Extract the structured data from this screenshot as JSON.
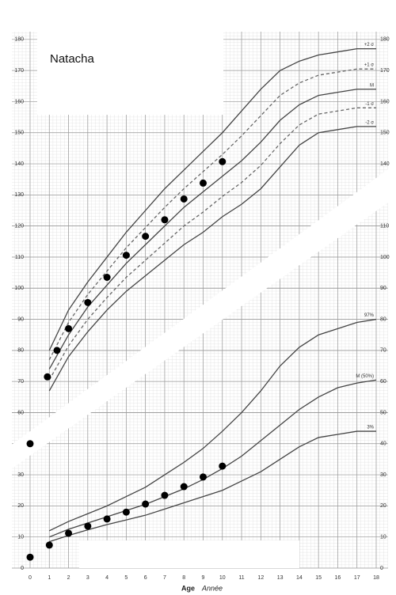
{
  "chart_data": {
    "type": "line",
    "title": "Natacha",
    "xlabel": "Age",
    "xlabel_translation": "Année",
    "xlim": [
      0,
      18
    ],
    "xticks": [
      0,
      1,
      2,
      3,
      4,
      5,
      6,
      7,
      8,
      9,
      10,
      11,
      12,
      13,
      14,
      15,
      16,
      17,
      18
    ],
    "ylim": [
      10,
      182.5
    ],
    "yticks": [
      60,
      70,
      80,
      90,
      100,
      110,
      120,
      130,
      140,
      150,
      160,
      170,
      180
    ],
    "y2lim": [
      0,
      172.5
    ],
    "y2ticks": [
      0,
      10,
      20,
      30,
      40,
      50,
      60,
      70,
      80,
      90,
      100,
      110
    ],
    "grid": true,
    "series": [
      {
        "name": "+2 σ",
        "color": "#444444",
        "dash": "solid",
        "x": [
          1,
          2,
          3,
          4,
          5,
          6,
          7,
          8,
          9,
          10,
          11,
          12,
          13,
          14,
          15,
          16,
          17,
          18
        ],
        "values": [
          80,
          93,
          102,
          110,
          118,
          125,
          132,
          138,
          144,
          150,
          157,
          164,
          170,
          173,
          175,
          176,
          177,
          177
        ]
      },
      {
        "name": "+1 σ",
        "color": "#666666",
        "dash": "dashed",
        "x": [
          1,
          2,
          3,
          4,
          5,
          6,
          7,
          8,
          9,
          10,
          11,
          12,
          13,
          14,
          15,
          16,
          17,
          18
        ],
        "values": [
          77,
          89,
          98,
          105.5,
          113,
          119.5,
          126,
          132,
          137.5,
          143,
          149,
          155.5,
          162,
          166,
          168.5,
          169.5,
          170.5,
          170.5
        ]
      },
      {
        "name": "M",
        "color": "#444444",
        "dash": "solid",
        "x": [
          1,
          2,
          3,
          4,
          5,
          6,
          7,
          8,
          9,
          10,
          11,
          12,
          13,
          14,
          15,
          16,
          17,
          18
        ],
        "values": [
          74,
          85,
          94,
          101,
          108,
          114,
          120,
          126,
          131,
          136,
          141,
          147,
          154,
          159,
          162,
          163,
          164,
          164
        ]
      },
      {
        "name": "-1 σ",
        "color": "#666666",
        "dash": "dashed",
        "x": [
          1,
          2,
          3,
          4,
          5,
          6,
          7,
          8,
          9,
          10,
          11,
          12,
          13,
          14,
          15,
          16,
          17,
          18
        ],
        "values": [
          70.5,
          81.5,
          90,
          97,
          103.5,
          109,
          114.5,
          120,
          124.5,
          129.5,
          134,
          139.5,
          146.5,
          152.5,
          156,
          157,
          158,
          158
        ]
      },
      {
        "name": "-2 σ",
        "color": "#444444",
        "dash": "solid",
        "x": [
          1,
          2,
          3,
          4,
          5,
          6,
          7,
          8,
          9,
          10,
          11,
          12,
          13,
          14,
          15,
          16,
          17,
          18
        ],
        "values": [
          67,
          78,
          86,
          93,
          99,
          104,
          109,
          114,
          118,
          123,
          127,
          132,
          139,
          146,
          150,
          151,
          152,
          152
        ]
      },
      {
        "name": "97%",
        "color": "#444444",
        "dash": "solid",
        "axis": "y2",
        "x": [
          1,
          2,
          3,
          4,
          5,
          6,
          7,
          8,
          9,
          10,
          11,
          12,
          13,
          14,
          15,
          16,
          17,
          18
        ],
        "values": [
          12,
          15,
          17.5,
          20,
          23,
          26,
          30,
          34,
          38.5,
          44,
          50,
          57,
          65,
          71,
          75,
          77,
          79,
          80
        ]
      },
      {
        "name": "M (50%)",
        "color": "#444444",
        "dash": "solid",
        "axis": "y2",
        "x": [
          1,
          2,
          3,
          4,
          5,
          6,
          7,
          8,
          9,
          10,
          11,
          12,
          13,
          14,
          15,
          16,
          17,
          18
        ],
        "values": [
          10,
          12.5,
          14.5,
          16.5,
          18.5,
          20.5,
          23,
          25.5,
          28.5,
          32,
          36,
          41,
          46,
          51,
          55,
          58,
          59.5,
          60.5
        ]
      },
      {
        "name": "3%",
        "color": "#444444",
        "dash": "solid",
        "axis": "y2",
        "x": [
          1,
          2,
          3,
          4,
          5,
          6,
          7,
          8,
          9,
          10,
          11,
          12,
          13,
          14,
          15,
          16,
          17,
          18
        ],
        "values": [
          8.5,
          10.5,
          12.3,
          14,
          15.5,
          17,
          19,
          21,
          23,
          25,
          28,
          31,
          35,
          39,
          42,
          43,
          44,
          44
        ]
      },
      {
        "color": "#000000",
        "marker": "dot",
        "x": [
          0,
          0.9,
          1.4,
          2,
          3,
          4,
          5,
          6,
          7,
          8,
          9,
          10
        ],
        "values": [
          50,
          71.5,
          80,
          87,
          95.4,
          103.5,
          110.6,
          116.7,
          122,
          128.7,
          133.8,
          140.7
        ]
      },
      {
        "color": "#000000",
        "marker": "dot",
        "axis": "y2",
        "x": [
          0,
          1,
          2,
          3,
          4,
          5,
          6,
          7,
          8,
          9,
          10
        ],
        "values": [
          3.5,
          7.4,
          11.2,
          13.5,
          15.8,
          18,
          20.6,
          23.4,
          26.2,
          29.3,
          32.8
        ]
      }
    ]
  }
}
